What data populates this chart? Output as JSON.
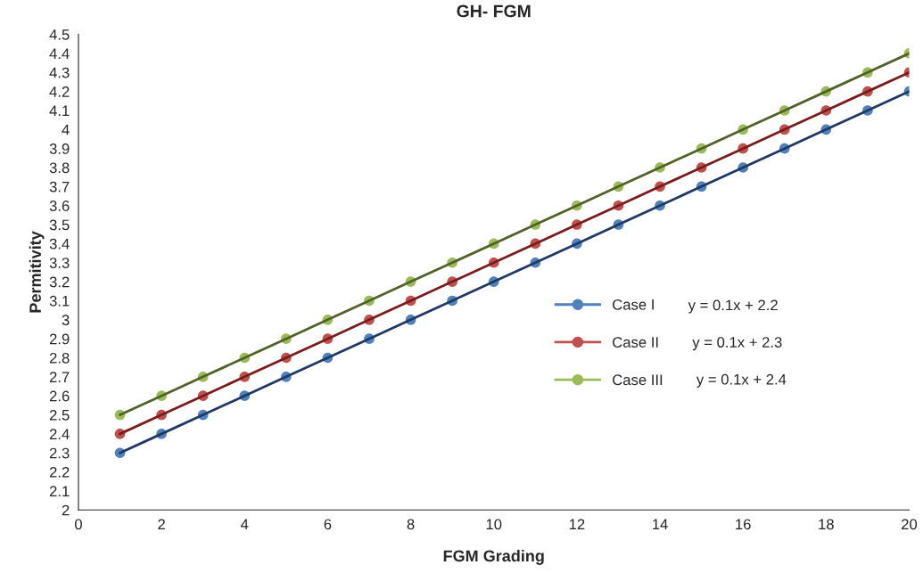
{
  "chart_data": {
    "type": "line",
    "title": "GH- FGM",
    "xlabel": "FGM Grading",
    "ylabel": "Permitivity",
    "x": [
      1,
      2,
      3,
      4,
      5,
      6,
      7,
      8,
      9,
      10,
      11,
      12,
      13,
      14,
      15,
      16,
      17,
      18,
      19,
      20
    ],
    "series": [
      {
        "name": "Case I",
        "type": "scatter",
        "color": "#4f81bd",
        "marker": "circle",
        "values": [
          2.3,
          2.4,
          2.5,
          2.6,
          2.7,
          2.8,
          2.9,
          3.0,
          3.1,
          3.2,
          3.3,
          3.4,
          3.5,
          3.6,
          3.7,
          3.8,
          3.9,
          4.0,
          4.1,
          4.2
        ]
      },
      {
        "name": "Case II",
        "type": "scatter",
        "color": "#c0504d",
        "marker": "circle",
        "values": [
          2.4,
          2.5,
          2.6,
          2.7,
          2.8,
          2.9,
          3.0,
          3.1,
          3.2,
          3.3,
          3.4,
          3.5,
          3.6,
          3.7,
          3.8,
          3.9,
          4.0,
          4.1,
          4.2,
          4.3
        ]
      },
      {
        "name": "Case III",
        "type": "scatter",
        "color": "#9bbb59",
        "marker": "circle",
        "values": [
          2.5,
          2.6,
          2.7,
          2.8,
          2.9,
          3.0,
          3.1,
          3.2,
          3.3,
          3.4,
          3.5,
          3.6,
          3.7,
          3.8,
          3.9,
          4.0,
          4.1,
          4.2,
          4.3,
          4.4
        ]
      },
      {
        "type": "line",
        "color": "#1f3864",
        "marker": "none",
        "values": [
          2.3,
          2.4,
          2.5,
          2.6,
          2.7,
          2.8,
          2.9,
          3.0,
          3.1,
          3.2,
          3.3,
          3.4,
          3.5,
          3.6,
          3.7,
          3.8,
          3.9,
          4.0,
          4.1,
          4.2
        ]
      },
      {
        "type": "line",
        "color": "#7b1c1c",
        "marker": "none",
        "values": [
          2.4,
          2.5,
          2.6,
          2.7,
          2.8,
          2.9,
          3.0,
          3.1,
          3.2,
          3.3,
          3.4,
          3.5,
          3.6,
          3.7,
          3.8,
          3.9,
          4.0,
          4.1,
          4.2,
          4.3
        ]
      },
      {
        "color": "#4f6228",
        "marker": "none",
        "values": [
          2.5,
          2.6,
          2.7,
          2.8,
          2.9,
          3.0,
          3.1,
          3.2,
          3.3,
          3.4,
          3.5,
          3.6,
          3.7,
          3.8,
          3.9,
          4.0,
          4.1,
          4.2,
          4.3,
          4.4
        ]
      }
    ],
    "annotations": [
      "y = 0.1x + 2.2",
      "y = 0.1x + 2.3",
      "y = 0.1x + 2.4"
    ],
    "xlim": [
      0,
      20
    ],
    "xticks": [
      0,
      2,
      4,
      6,
      8,
      10,
      12,
      14,
      16,
      18,
      20
    ],
    "ylim": [
      2,
      4.5
    ],
    "yticks": [
      2,
      2.1,
      2.2,
      2.3,
      2.4,
      2.5,
      2.6,
      2.7,
      2.8,
      2.9,
      3,
      3.1,
      3.2,
      3.3,
      3.4,
      3.5,
      3.6,
      3.7,
      3.8,
      3.9,
      4,
      4.1,
      4.2,
      4.3,
      4.4,
      4.5
    ],
    "grid": false,
    "legend": "right"
  }
}
